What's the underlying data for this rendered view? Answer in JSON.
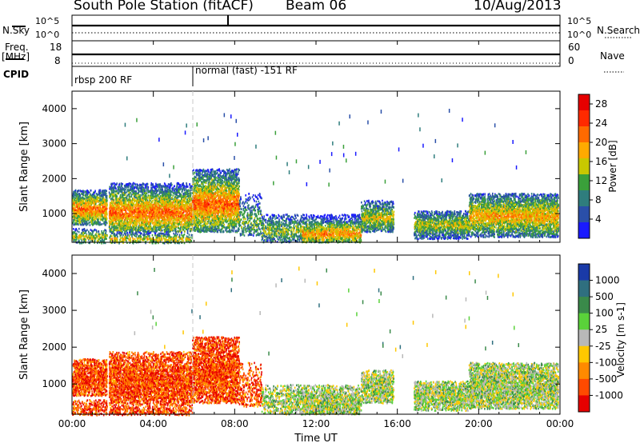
{
  "header": {
    "station": "South Pole Station (fitACF)",
    "beam": "Beam 06",
    "date": "10/Aug/2013"
  },
  "panels": {
    "nsky_label": "N.Sky",
    "nsky_top": "10^5",
    "nsky_bottom": "10^0",
    "nsearch_label": "N.Search",
    "nsearch_top": "10^5",
    "nsearch_bottom": "10^0",
    "freq_label": "Freq.",
    "freq_unit": "[MHz]",
    "freq_top": "18",
    "freq_bottom": "8",
    "nave_label": "Nave",
    "nave_top": "60",
    "nave_bottom": "0",
    "cpid_label": "CPID",
    "cpid_1": "rbsp 200 RF",
    "cpid_2": "normal (fast) -151 RF"
  },
  "colors": {
    "power": [
      "#1a1aff",
      "#2a4fa8",
      "#2f7d7d",
      "#3aa03a",
      "#c8c800",
      "#ffaa00",
      "#ff6a00",
      "#ff2a00",
      "#e60000"
    ],
    "velocity": [
      "#e60000",
      "#ff4a00",
      "#ff8a00",
      "#ffc800",
      "#b8b8b8",
      "#5ad23a",
      "#3a8a4a",
      "#2f6f7f",
      "#1a3aa8"
    ]
  },
  "chart_data": [
    {
      "type": "heatmap",
      "title": "",
      "xlabel": "",
      "ylabel": "Slant Range [km]",
      "x_ticks": [
        "00:00",
        "04:00",
        "08:00",
        "12:00",
        "16:00",
        "20:00",
        "00:00"
      ],
      "y_ticks": [
        "1000",
        "2000",
        "3000",
        "4000"
      ],
      "xlim_hours": [
        0,
        24
      ],
      "ylim_km": [
        180,
        4500
      ],
      "colorbar_label": "Power [dB]",
      "colorbar_ticks": [
        "4",
        "8",
        "12",
        "16",
        "20",
        "24",
        "28"
      ],
      "colorbar_range": [
        0,
        30
      ]
    },
    {
      "type": "heatmap",
      "title": "",
      "xlabel": "Time UT",
      "ylabel": "Slant Range [km]",
      "x_ticks": [
        "00:00",
        "04:00",
        "08:00",
        "12:00",
        "16:00",
        "20:00",
        "00:00"
      ],
      "y_ticks": [
        "1000",
        "2000",
        "3000",
        "4000"
      ],
      "xlim_hours": [
        0,
        24
      ],
      "ylim_km": [
        180,
        4500
      ],
      "colorbar_label": "Velocity [m s-1]",
      "colorbar_ticks": [
        "1000",
        "500",
        "100",
        "25",
        "-25",
        "-100",
        "-500",
        "-1000"
      ]
    }
  ],
  "scatter_regions": [
    {
      "t0": 0.0,
      "t1": 1.7,
      "r0": 700,
      "r1": 1700,
      "center": 1150,
      "level": 0.75,
      "density": 0.9
    },
    {
      "t0": 0.0,
      "t1": 1.7,
      "r0": 180,
      "r1": 600,
      "center": 350,
      "level": 0.55,
      "density": 0.5
    },
    {
      "t0": 1.8,
      "t1": 5.9,
      "r0": 500,
      "r1": 1900,
      "center": 1050,
      "level": 0.78,
      "density": 0.85
    },
    {
      "t0": 1.8,
      "t1": 5.9,
      "r0": 180,
      "r1": 500,
      "center": 300,
      "level": 0.6,
      "density": 0.5
    },
    {
      "t0": 5.9,
      "t1": 8.2,
      "r0": 500,
      "r1": 2300,
      "center": 1300,
      "level": 0.8,
      "density": 0.85
    },
    {
      "t0": 8.2,
      "t1": 9.3,
      "r0": 400,
      "r1": 1600,
      "center": 800,
      "level": 0.4,
      "density": 0.35
    },
    {
      "t0": 9.3,
      "t1": 11.3,
      "r0": 200,
      "r1": 1000,
      "center": 550,
      "level": 0.45,
      "density": 0.5
    },
    {
      "t0": 11.3,
      "t1": 14.2,
      "r0": 200,
      "r1": 1000,
      "center": 450,
      "level": 0.7,
      "density": 0.85
    },
    {
      "t0": 14.2,
      "t1": 15.8,
      "r0": 500,
      "r1": 1400,
      "center": 900,
      "level": 0.55,
      "density": 0.75
    },
    {
      "t0": 16.8,
      "t1": 19.5,
      "r0": 300,
      "r1": 1100,
      "center": 700,
      "level": 0.5,
      "density": 0.8
    },
    {
      "t0": 19.5,
      "t1": 23.9,
      "r0": 350,
      "r1": 1600,
      "center": 950,
      "level": 0.65,
      "density": 0.85
    }
  ]
}
